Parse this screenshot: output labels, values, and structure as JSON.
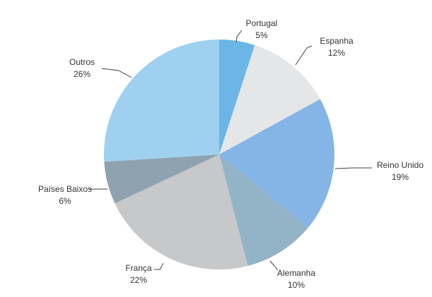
{
  "chart_data": {
    "type": "pie",
    "slices": [
      {
        "label": "Portugal",
        "value_label": "5%",
        "value": 5,
        "color": "#6bb6e6"
      },
      {
        "label": "Espanha",
        "value_label": "12%",
        "value": 12,
        "color": "#e4e6e8"
      },
      {
        "label": "Reino Unido",
        "value_label": "19%",
        "value": 19,
        "color": "#85b4e6"
      },
      {
        "label": "Alemanha",
        "value_label": "10%",
        "value": 10,
        "color": "#92b4c6"
      },
      {
        "label": "França",
        "value_label": "22%",
        "value": 22,
        "color": "#c6c8ca"
      },
      {
        "label": "Países Baixos",
        "value_label": "6%",
        "value": 6,
        "color": "#8fa2b0"
      },
      {
        "label": "Outros",
        "value_label": "26%",
        "value": 26,
        "color": "#9fd0f0"
      }
    ],
    "start_angle_deg": 0,
    "direction": "clockwise"
  }
}
